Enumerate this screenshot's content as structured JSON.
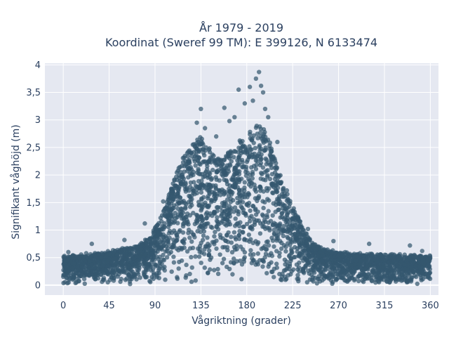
{
  "chart_data": {
    "type": "scatter",
    "title_line1": "År 1979 - 2019",
    "title_line2": "Koordinat (Sweref 99 TM): E 399126, N 6133474",
    "xlabel": "Vågriktning (grader)",
    "ylabel": "Signifikant våghöjd (m)",
    "xlim": [
      -18,
      368
    ],
    "ylim": [
      -0.18,
      4.03
    ],
    "x_ticks": [
      0,
      45,
      90,
      135,
      180,
      225,
      270,
      315,
      360
    ],
    "x_tick_labels": [
      "0",
      "45",
      "90",
      "135",
      "180",
      "225",
      "270",
      "315",
      "360"
    ],
    "y_ticks": [
      0,
      0.5,
      1,
      1.5,
      2,
      2.5,
      3,
      3.5,
      4
    ],
    "y_tick_labels": [
      "0",
      "0,5",
      "1",
      "1,5",
      "2",
      "2,5",
      "3",
      "3,5",
      "4"
    ],
    "grid": true,
    "marker_color": "#34576f",
    "background_color": "#e5e8f1",
    "envelope": {
      "description_units": "upper limit of significant wave height (m) vs wave direction (degrees)",
      "x": [
        0,
        20,
        45,
        70,
        85,
        95,
        105,
        115,
        125,
        135,
        145,
        155,
        165,
        175,
        185,
        195,
        205,
        215,
        225,
        235,
        245,
        255,
        270,
        290,
        315,
        340,
        360
      ],
      "y": [
        0.52,
        0.55,
        0.6,
        0.7,
        0.85,
        1.2,
        1.7,
        2.3,
        2.55,
        2.7,
        2.45,
        2.3,
        2.45,
        2.65,
        2.85,
        2.9,
        2.5,
        1.9,
        1.45,
        1.05,
        0.75,
        0.65,
        0.6,
        0.56,
        0.55,
        0.54,
        0.52
      ]
    },
    "outliers": [
      {
        "x": 135,
        "y": 3.2
      },
      {
        "x": 131,
        "y": 2.95
      },
      {
        "x": 139,
        "y": 2.85
      },
      {
        "x": 158,
        "y": 3.22
      },
      {
        "x": 168,
        "y": 3.05
      },
      {
        "x": 172,
        "y": 3.55
      },
      {
        "x": 178,
        "y": 3.3
      },
      {
        "x": 183,
        "y": 3.6
      },
      {
        "x": 186,
        "y": 3.35
      },
      {
        "x": 189,
        "y": 3.75
      },
      {
        "x": 192,
        "y": 3.87
      },
      {
        "x": 194,
        "y": 3.62
      },
      {
        "x": 196,
        "y": 3.5
      },
      {
        "x": 198,
        "y": 3.2
      },
      {
        "x": 201,
        "y": 3.05
      },
      {
        "x": 163,
        "y": 2.98
      },
      {
        "x": 150,
        "y": 2.7
      },
      {
        "x": 210,
        "y": 2.6
      },
      {
        "x": 80,
        "y": 1.12
      },
      {
        "x": 98,
        "y": 1.52
      },
      {
        "x": 60,
        "y": 0.82
      },
      {
        "x": 240,
        "y": 1.02
      },
      {
        "x": 265,
        "y": 0.8
      },
      {
        "x": 300,
        "y": 0.75
      },
      {
        "x": 340,
        "y": 0.72
      },
      {
        "x": 5,
        "y": 0.6
      },
      {
        "x": 28,
        "y": 0.75
      },
      {
        "x": 352,
        "y": 0.62
      }
    ]
  }
}
